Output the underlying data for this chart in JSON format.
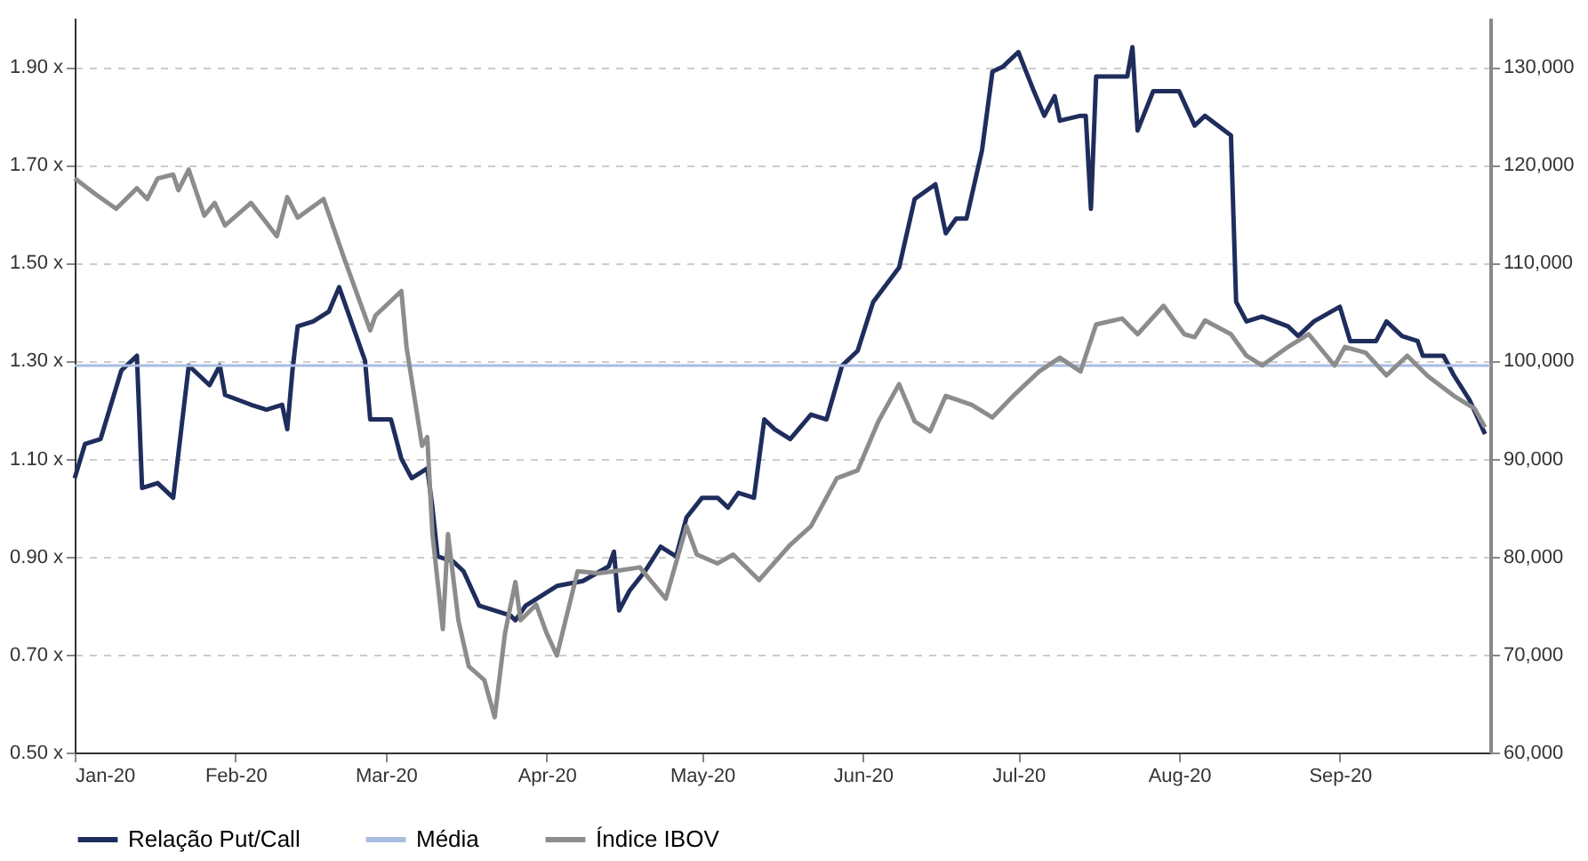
{
  "chart_data": {
    "type": "line",
    "legend": "bottom",
    "grid": "y",
    "line_style": "solid",
    "marker": "none",
    "xlim": [
      "2020-01-01",
      "2020-09-30"
    ],
    "xticks": [
      {
        "value": "2020-01-01",
        "label": "Jan-20"
      },
      {
        "value": "2020-02-01",
        "label": "Feb-20"
      },
      {
        "value": "2020-03-01",
        "label": "Mar-20"
      },
      {
        "value": "2020-04-01",
        "label": "Apr-20"
      },
      {
        "value": "2020-05-01",
        "label": "May-20"
      },
      {
        "value": "2020-06-01",
        "label": "Jun-20"
      },
      {
        "value": "2020-07-01",
        "label": "Jul-20"
      },
      {
        "value": "2020-08-01",
        "label": "Aug-20"
      },
      {
        "value": "2020-09-01",
        "label": "Sep-20"
      }
    ],
    "ylim": [
      0.5,
      2.0
    ],
    "yticks": [
      {
        "value": 0.5,
        "label": "0.50 x"
      },
      {
        "value": 0.7,
        "label": "0.70 x"
      },
      {
        "value": 0.9,
        "label": "0.90 x"
      },
      {
        "value": 1.1,
        "label": "1.10 x"
      },
      {
        "value": 1.3,
        "label": "1.30 x"
      },
      {
        "value": 1.5,
        "label": "1.50 x"
      },
      {
        "value": 1.7,
        "label": "1.70 x"
      },
      {
        "value": 1.9,
        "label": "1.90 x"
      }
    ],
    "y2lim": [
      60000,
      135000
    ],
    "y2ticks": [
      {
        "value": 60000,
        "label": "60,000"
      },
      {
        "value": 70000,
        "label": "70,000"
      },
      {
        "value": 80000,
        "label": "80,000"
      },
      {
        "value": 90000,
        "label": "90,000"
      },
      {
        "value": 100000,
        "label": "100,000"
      },
      {
        "value": 110000,
        "label": "110,000"
      },
      {
        "value": 120000,
        "label": "120,000"
      },
      {
        "value": 130000,
        "label": "130,000"
      }
    ],
    "series": [
      {
        "name": "Relação Put/Call",
        "color": "#1f2d5c",
        "x": [
          "2020-01-01",
          "2020-01-03",
          "2020-01-06",
          "2020-01-08",
          "2020-01-10",
          "2020-01-13",
          "2020-01-14",
          "2020-01-17",
          "2020-01-20",
          "2020-01-23",
          "2020-01-27",
          "2020-01-29",
          "2020-01-30",
          "2020-02-04",
          "2020-02-07",
          "2020-02-10",
          "2020-02-11",
          "2020-02-12",
          "2020-02-13",
          "2020-02-16",
          "2020-02-19",
          "2020-02-21",
          "2020-02-22",
          "2020-02-26",
          "2020-02-27",
          "2020-03-02",
          "2020-03-04",
          "2020-03-06",
          "2020-03-09",
          "2020-03-10",
          "2020-03-11",
          "2020-03-14",
          "2020-03-16",
          "2020-03-19",
          "2020-03-22",
          "2020-03-25",
          "2020-03-26",
          "2020-03-28",
          "2020-03-31",
          "2020-04-03",
          "2020-04-08",
          "2020-04-13",
          "2020-04-14",
          "2020-04-15",
          "2020-04-17",
          "2020-04-20",
          "2020-04-23",
          "2020-04-26",
          "2020-04-28",
          "2020-05-01",
          "2020-05-04",
          "2020-05-06",
          "2020-05-08",
          "2020-05-11",
          "2020-05-13",
          "2020-05-15",
          "2020-05-18",
          "2020-05-22",
          "2020-05-25",
          "2020-05-28",
          "2020-05-31",
          "2020-06-03",
          "2020-06-08",
          "2020-06-11",
          "2020-06-15",
          "2020-06-17",
          "2020-06-19",
          "2020-06-21",
          "2020-06-24",
          "2020-06-26",
          "2020-06-28",
          "2020-07-01",
          "2020-07-04",
          "2020-07-06",
          "2020-07-08",
          "2020-07-09",
          "2020-07-13",
          "2020-07-14",
          "2020-07-15",
          "2020-07-16",
          "2020-07-20",
          "2020-07-22",
          "2020-07-23",
          "2020-07-24",
          "2020-07-27",
          "2020-08-01",
          "2020-08-04",
          "2020-08-06",
          "2020-08-11",
          "2020-08-12",
          "2020-08-14",
          "2020-08-17",
          "2020-08-22",
          "2020-08-24",
          "2020-08-27",
          "2020-09-01",
          "2020-09-03",
          "2020-09-08",
          "2020-09-10",
          "2020-09-13",
          "2020-09-16",
          "2020-09-17",
          "2020-09-21",
          "2020-09-23",
          "2020-09-26",
          "2020-09-29"
        ],
        "values": [
          1.06,
          1.13,
          1.14,
          1.21,
          1.28,
          1.31,
          1.04,
          1.05,
          1.02,
          1.29,
          1.25,
          1.29,
          1.23,
          1.21,
          1.2,
          1.21,
          1.16,
          1.28,
          1.37,
          1.38,
          1.4,
          1.45,
          1.42,
          1.3,
          1.18,
          1.18,
          1.1,
          1.06,
          1.08,
          1.0,
          0.9,
          0.89,
          0.87,
          0.8,
          0.79,
          0.78,
          0.77,
          0.8,
          0.82,
          0.84,
          0.85,
          0.88,
          0.91,
          0.79,
          0.83,
          0.87,
          0.92,
          0.9,
          0.98,
          1.02,
          1.02,
          1.0,
          1.03,
          1.02,
          1.18,
          1.16,
          1.14,
          1.19,
          1.18,
          1.29,
          1.32,
          1.42,
          1.49,
          1.63,
          1.66,
          1.56,
          1.59,
          1.59,
          1.73,
          1.89,
          1.9,
          1.93,
          1.85,
          1.8,
          1.84,
          1.79,
          1.8,
          1.8,
          1.61,
          1.88,
          1.88,
          1.88,
          1.94,
          1.77,
          1.85,
          1.85,
          1.78,
          1.8,
          1.76,
          1.42,
          1.38,
          1.39,
          1.37,
          1.35,
          1.38,
          1.41,
          1.34,
          1.34,
          1.38,
          1.35,
          1.34,
          1.31,
          1.31,
          1.27,
          1.22,
          1.15
        ]
      },
      {
        "name": "Média",
        "color": "#a9bde0",
        "x": [
          "2020-01-01",
          "2020-09-30"
        ],
        "values": [
          1.29,
          1.29
        ]
      },
      {
        "name": "Índice IBOV",
        "color": "#8c8c8c",
        "axis": "y2",
        "x": [
          "2020-01-01",
          "2020-01-05",
          "2020-01-09",
          "2020-01-13",
          "2020-01-15",
          "2020-01-17",
          "2020-01-20",
          "2020-01-21",
          "2020-01-23",
          "2020-01-26",
          "2020-01-28",
          "2020-01-30",
          "2020-02-04",
          "2020-02-09",
          "2020-02-11",
          "2020-02-13",
          "2020-02-18",
          "2020-02-22",
          "2020-02-27",
          "2020-02-28",
          "2020-03-04",
          "2020-03-05",
          "2020-03-08",
          "2020-03-09",
          "2020-03-10",
          "2020-03-12",
          "2020-03-13",
          "2020-03-15",
          "2020-03-17",
          "2020-03-20",
          "2020-03-22",
          "2020-03-24",
          "2020-03-26",
          "2020-03-27",
          "2020-03-30",
          "2020-04-01",
          "2020-04-03",
          "2020-04-07",
          "2020-04-11",
          "2020-04-14",
          "2020-04-19",
          "2020-04-21",
          "2020-04-24",
          "2020-04-28",
          "2020-04-30",
          "2020-05-04",
          "2020-05-07",
          "2020-05-12",
          "2020-05-18",
          "2020-05-22",
          "2020-05-27",
          "2020-05-31",
          "2020-06-04",
          "2020-06-08",
          "2020-06-11",
          "2020-06-14",
          "2020-06-17",
          "2020-06-22",
          "2020-06-26",
          "2020-06-30",
          "2020-07-05",
          "2020-07-09",
          "2020-07-13",
          "2020-07-16",
          "2020-07-21",
          "2020-07-24",
          "2020-07-29",
          "2020-08-02",
          "2020-08-04",
          "2020-08-06",
          "2020-08-11",
          "2020-08-14",
          "2020-08-17",
          "2020-08-22",
          "2020-08-26",
          "2020-08-31",
          "2020-09-02",
          "2020-09-06",
          "2020-09-10",
          "2020-09-14",
          "2020-09-18",
          "2020-09-23",
          "2020-09-27",
          "2020-09-29"
        ],
        "values": [
          118600,
          117000,
          115500,
          117600,
          116500,
          118600,
          119000,
          117400,
          119500,
          114800,
          116100,
          113800,
          116100,
          112700,
          116700,
          114600,
          116500,
          110400,
          103100,
          104600,
          107100,
          101400,
          91300,
          92200,
          82300,
          72600,
          82300,
          73500,
          68800,
          67400,
          63600,
          72200,
          77400,
          73500,
          75100,
          72200,
          69900,
          78500,
          78300,
          78500,
          78900,
          77600,
          75700,
          83100,
          80200,
          79300,
          80200,
          77600,
          81200,
          83100,
          88000,
          88800,
          93800,
          97600,
          93800,
          92800,
          96400,
          95500,
          94200,
          96400,
          98900,
          100300,
          98900,
          103700,
          104300,
          102700,
          105600,
          102700,
          102400,
          104100,
          102700,
          100500,
          99500,
          101400,
          102700,
          99500,
          101400,
          100800,
          98500,
          100500,
          98400,
          96400,
          95100,
          93200
        ]
      }
    ]
  }
}
